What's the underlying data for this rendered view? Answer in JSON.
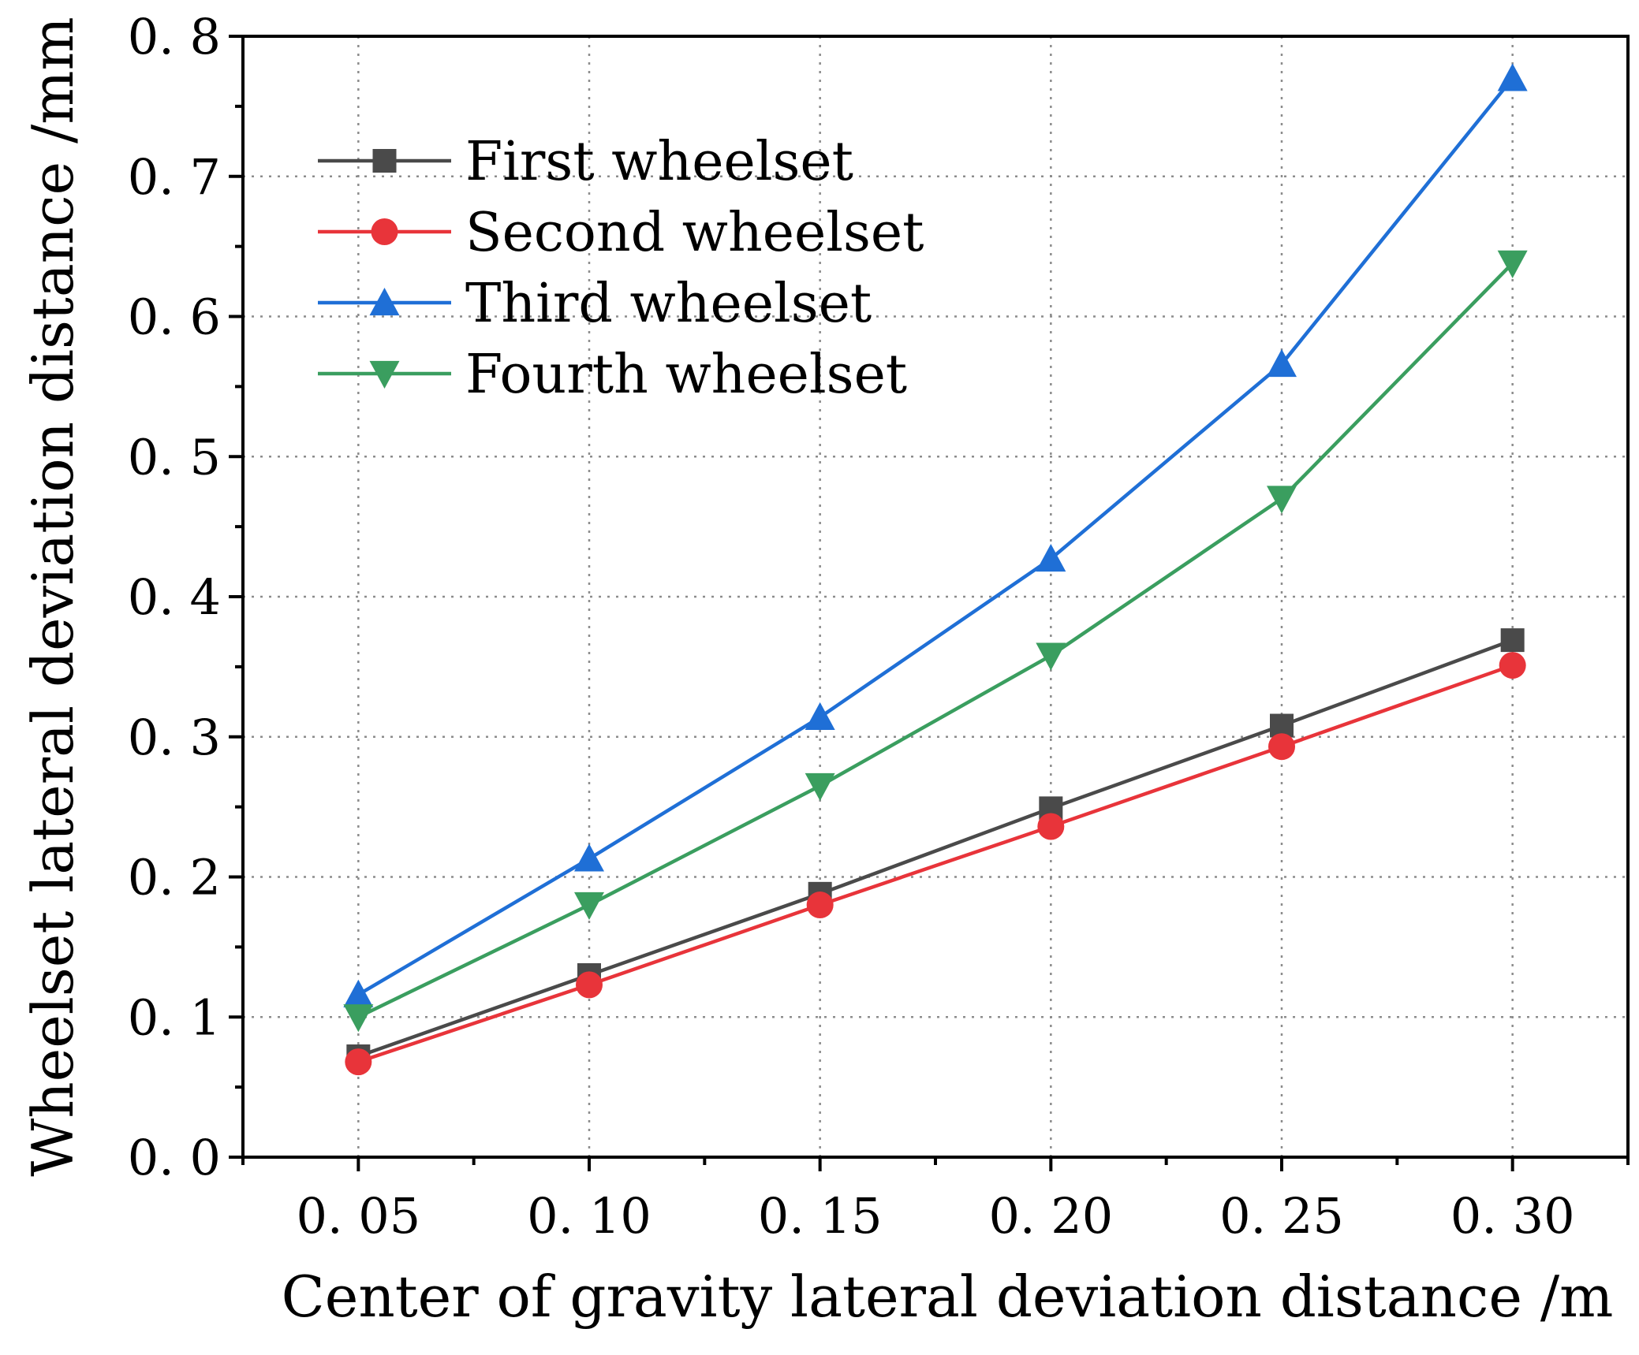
{
  "chart_data": {
    "type": "line",
    "title": "",
    "xlabel": "Center of gravity lateral  deviation distance /m",
    "ylabel": "Wheelset lateral deviation distance /mm",
    "x": [
      0.05,
      0.1,
      0.15,
      0.2,
      0.25,
      0.3
    ],
    "x_tick_labels": [
      "0. 05",
      "0. 10",
      "0. 15",
      "0. 20",
      "0. 25",
      "0. 30"
    ],
    "xlim": [
      0.025,
      0.325
    ],
    "ylim": [
      0.0,
      0.8
    ],
    "y_ticks": [
      0.0,
      0.1,
      0.2,
      0.3,
      0.4,
      0.5,
      0.6,
      0.7,
      0.8
    ],
    "y_tick_labels": [
      "0. 0",
      "0. 1",
      "0. 2",
      "0. 3",
      "0. 4",
      "0. 5",
      "0. 6",
      "0. 7",
      "0. 8"
    ],
    "grid": true,
    "legend_position": "top-left",
    "series": [
      {
        "name": "First wheelset",
        "color": "#4a4a4a",
        "marker": "square",
        "values": [
          0.072,
          0.13,
          0.188,
          0.249,
          0.308,
          0.369
        ]
      },
      {
        "name": "Second wheelset",
        "color": "#e8343a",
        "marker": "circle",
        "values": [
          0.068,
          0.123,
          0.18,
          0.236,
          0.293,
          0.351
        ]
      },
      {
        "name": "Third wheelset",
        "color": "#1f6fd6",
        "marker": "triangle-up",
        "values": [
          0.116,
          0.213,
          0.314,
          0.427,
          0.566,
          0.77
        ]
      },
      {
        "name": "Fourth wheelset",
        "color": "#3a9e5f",
        "marker": "triangle-down",
        "values": [
          0.1,
          0.18,
          0.265,
          0.358,
          0.47,
          0.638
        ]
      }
    ]
  }
}
